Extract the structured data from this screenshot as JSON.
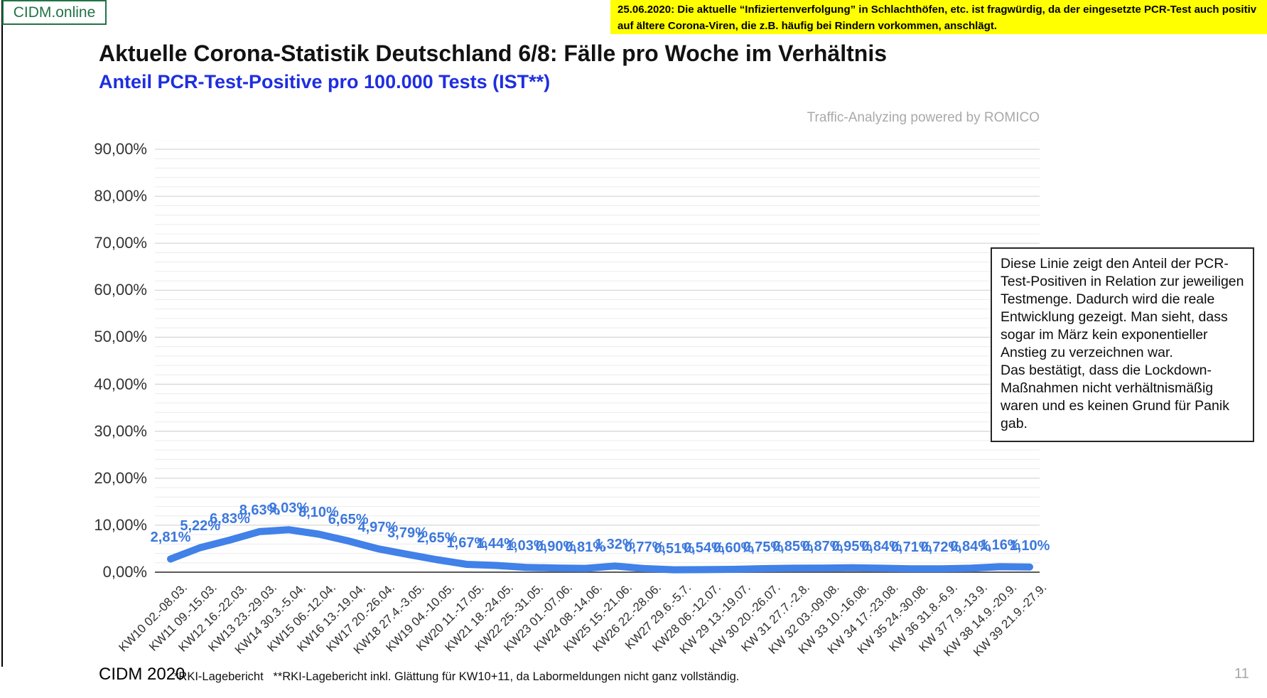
{
  "header": {
    "logo": "CIDM.online",
    "note": "25.06.2020: Die aktuelle “Infiziertenverfolgung” in Schlachthöfen, etc. ist fragwürdig, da der eingesetzte PCR-Test auch positiv auf ältere Corona-Viren, die z.B. häufig bei Rindern vorkommen, anschlägt.",
    "title": "Aktuelle Corona-Statistik Deutschland 6/8: Fälle pro Woche im Verhältnis",
    "subtitle": "Anteil PCR-Test-Positive pro 100.000 Tests (IST**)"
  },
  "watermark": "Traffic-Analyzing powered by ROMICO",
  "annotation": {
    "paragraphs": [
      "Diese Linie zeigt den Anteil der PCR-Test-Positiven in Relation zur jeweiligen Testmenge. Dadurch wird die reale Entwicklung gezeigt. Man sieht, dass sogar im März kein exponentieller Anstieg zu verzeichnen war.",
      "Das bestätigt, dass die Lockdown-Maßnahmen nicht verhältnismäßig waren und es keinen Grund für Panik gab."
    ]
  },
  "footer": {
    "brand": "CIDM 2020",
    "sources": "*RKI-Lagebericht   **RKI-Lagebericht inkl. Glättung für KW10+11, da Labormeldungen nicht ganz vollständig.",
    "page_number": "11"
  },
  "colors": {
    "logo_green": "#217346",
    "note_background": "#ffff00",
    "subtitle_blue": "#1f2ee0",
    "line_blue": "#4181e8",
    "data_label_blue": "#3c78dd",
    "watermark_gray": "#a9a9a9"
  },
  "chart_data": {
    "type": "line",
    "title": "Anteil PCR-Test-Positive pro 100.000 Tests (IST**)",
    "xlabel": "",
    "ylabel": "",
    "ylim": [
      0,
      90
    ],
    "y_tick_format": "percent",
    "grid": true,
    "minor_grid_step_percent": 2,
    "major_grid_step_percent": 10,
    "legend_position": "none",
    "line_color": "#4181e8",
    "label_color": "#3c78dd",
    "y_ticks": [
      "90,00%",
      "80,00%",
      "70,00%",
      "60,00%",
      "50,00%",
      "40,00%",
      "30,00%",
      "20,00%",
      "10,00%",
      "0,00%"
    ],
    "categories": [
      "KW10 02.-08.03.",
      "KW11 09.-15.03.",
      "KW12 16.-22.03.",
      "KW13 23.-29.03.",
      "KW14 30.3.-5.04.",
      "KW15 06.-12.04.",
      "KW16 13.-19.04.",
      "KW17 20.-26.04.",
      "KW18 27.4.-3.05.",
      "KW19 04.-10.05.",
      "KW20 11.-17.05.",
      "KW21 18.-24.05.",
      "KW22 25.-31.05.",
      "KW23 01.-07.06.",
      "KW24 08.-14.06.",
      "KW25 15.-21.06.",
      "KW26 22.-28.06.",
      "KW27 29.6.-5.7.",
      "KW28 06.-12.07.",
      "KW 29 13.-19.07.",
      "KW 30 20.-26.07.",
      "KW 31 27.7.-2.8.",
      "KW 32 03.-09.08.",
      "KW 33 10.-16.08.",
      "KW 34 17.-23.08.",
      "KW 35 24.-30.08.",
      "KW 36 31.8.-6.9.",
      "KW 37 7.9.-13.9.",
      "KW 38 14.9.-20.9.",
      "KW 39 21.9.-27.9."
    ],
    "values": [
      2.81,
      5.22,
      6.83,
      8.63,
      9.03,
      8.1,
      6.65,
      4.97,
      3.79,
      2.65,
      1.67,
      1.44,
      1.03,
      0.9,
      0.81,
      1.32,
      0.77,
      0.51,
      0.54,
      0.6,
      0.75,
      0.85,
      0.87,
      0.95,
      0.84,
      0.71,
      0.72,
      0.84,
      1.16,
      1.1
    ],
    "point_labels": [
      "2,81%",
      "5,22%",
      "6,83%",
      "8,63%",
      "9,03%",
      "8,10%",
      "6,65%",
      "4,97%",
      "3,79%",
      "2,65%",
      "1,67%",
      "1,44%",
      "1,03%",
      "0,90%",
      "0,81%",
      "1,32%",
      "0,77%",
      "0,51%",
      "0,54%",
      "0,60%",
      "0,75%",
      "0,85%",
      "0,87%",
      "0,95%",
      "0,84%",
      "0,71%",
      "0,72%",
      "0,84%",
      "1,16%",
      "1,10%"
    ]
  }
}
